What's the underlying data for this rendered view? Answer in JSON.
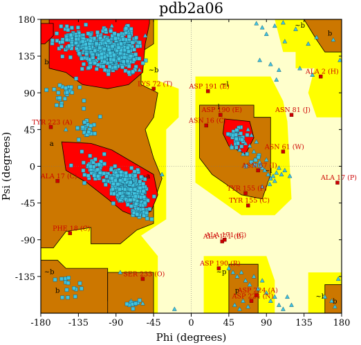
{
  "chart_data": {
    "type": "scatter",
    "title": "pdb2a06",
    "xlabel": "Phi (degrees)",
    "ylabel": "Psi (degrees)",
    "xlim": [
      -180,
      180
    ],
    "ylim": [
      -180,
      180
    ],
    "xticks": [
      -180,
      -135,
      -90,
      -45,
      0,
      45,
      90,
      135,
      180
    ],
    "yticks": [
      180,
      135,
      90,
      45,
      0,
      -45,
      -90,
      -135
    ],
    "xtick_labels": [
      "-180",
      "-135",
      "-90",
      "-45",
      "0",
      "45",
      "90",
      "135",
      "180"
    ],
    "ytick_labels": [
      "180",
      "135",
      "90",
      "45",
      "0",
      "-45",
      "-90",
      "-135"
    ],
    "zero_lines": true,
    "colors": {
      "core": "#ff0000",
      "allowed": "#cc7700",
      "generous": "#ffff00",
      "disallowed": "#ffffcc",
      "glycine": "#40c4e0",
      "non_glycine": "#40c4e0",
      "outlier": "#cc0000",
      "label_text": "#cc0000"
    },
    "region_labels": [
      {
        "text": "b",
        "phi": -173,
        "psi": 125
      },
      {
        "text": "a",
        "phi": -167,
        "psi": 25
      },
      {
        "text": "~b",
        "phi": -45,
        "psi": 115
      },
      {
        "text": "~a",
        "phi": -55,
        "psi": -15
      },
      {
        "text": "~l",
        "phi": 40,
        "psi": 98
      },
      {
        "text": "l",
        "phi": 33,
        "psi": 70
      },
      {
        "text": "~l",
        "phi": 92,
        "psi": -8
      },
      {
        "text": "~p",
        "phi": 36,
        "psi": -132
      },
      {
        "text": "p",
        "phi": 55,
        "psi": -155
      },
      {
        "text": "~b",
        "phi": 130,
        "psi": 170
      },
      {
        "text": "b",
        "phi": 166,
        "psi": 160
      },
      {
        "text": "~b",
        "phi": -170,
        "psi": -132
      },
      {
        "text": "b",
        "phi": -160,
        "psi": -155
      },
      {
        "text": "~b",
        "phi": 155,
        "psi": -162
      },
      {
        "text": "b",
        "phi": 172,
        "psi": -168
      }
    ],
    "outliers": [
      {
        "label": "LYS 72 (T)",
        "phi": -45,
        "psi": 95
      },
      {
        "label": "ASP 191 (E)",
        "phi": 20,
        "psi": 92
      },
      {
        "label": "ASP 190 (E)",
        "phi": 35,
        "psi": 63
      },
      {
        "label": "ASN 16 (C)",
        "phi": 18,
        "psi": 50
      },
      {
        "label": "ASN 81 (J)",
        "phi": 120,
        "psi": 63
      },
      {
        "label": "ALA 2 (H)",
        "phi": 155,
        "psi": 110
      },
      {
        "label": "TYR 223 (A)",
        "phi": -168,
        "psi": 48
      },
      {
        "label": "ASN 61 (W)",
        "phi": 110,
        "psi": 18
      },
      {
        "label": "ASN 67 (I)",
        "phi": 80,
        "psi": -5
      },
      {
        "label": "ALA 17 (C)",
        "phi": -160,
        "psi": -18
      },
      {
        "label": "ALA 17 (P)",
        "phi": 175,
        "psi": -20
      },
      {
        "label": "TYR 155 (P)",
        "phi": 65,
        "psi": -33
      },
      {
        "label": "TYR 155 (C)",
        "phi": 68,
        "psi": -48
      },
      {
        "label": "PHE 18 (C)",
        "phi": -145,
        "psi": -82
      },
      {
        "label": "ALA 171 (B)",
        "phi": 37,
        "psi": -92
      },
      {
        "label": "ALA 171 (C)",
        "phi": 40,
        "psi": -90
      },
      {
        "label": "ASP 190 (R)",
        "phi": 33,
        "psi": -125
      },
      {
        "label": "SER 233 (O)",
        "phi": -58,
        "psi": -138
      },
      {
        "label": "ASP 224 (A)",
        "phi": 78,
        "psi": -158
      },
      {
        "label": "ASP 224 (N)",
        "phi": 72,
        "psi": -165
      }
    ],
    "triangles": [
      {
        "phi": 78,
        "psi": 175
      },
      {
        "phi": 85,
        "psi": 170
      },
      {
        "phi": 90,
        "psi": 162
      },
      {
        "phi": 100,
        "psi": 172
      },
      {
        "phi": 110,
        "psi": 176
      },
      {
        "phi": 125,
        "psi": 168
      },
      {
        "phi": 140,
        "psi": 150
      },
      {
        "phi": 150,
        "psi": 158
      },
      {
        "phi": 170,
        "psi": 155
      },
      {
        "phi": 112,
        "psi": 153
      },
      {
        "phi": 82,
        "psi": 130
      },
      {
        "phi": 95,
        "psi": 125
      },
      {
        "phi": 105,
        "psi": 118
      },
      {
        "phi": 130,
        "psi": 120
      },
      {
        "phi": 145,
        "psi": 112
      },
      {
        "phi": 178,
        "psi": 130
      },
      {
        "phi": -78,
        "psi": 172
      },
      {
        "phi": -55,
        "psi": 160
      },
      {
        "phi": 102,
        "psi": 106
      },
      {
        "phi": -62,
        "psi": 118
      },
      {
        "phi": 55,
        "psi": 40
      },
      {
        "phi": 60,
        "psi": 32
      },
      {
        "phi": 65,
        "psi": 28
      },
      {
        "phi": 70,
        "psi": 25
      },
      {
        "phi": 72,
        "psi": 38
      },
      {
        "phi": 78,
        "psi": 30
      },
      {
        "phi": 75,
        "psi": 18
      },
      {
        "phi": 80,
        "psi": 12
      },
      {
        "phi": 82,
        "psi": 5
      },
      {
        "phi": 85,
        "psi": -2
      },
      {
        "phi": 88,
        "psi": -5
      },
      {
        "phi": 92,
        "psi": -10
      },
      {
        "phi": 95,
        "psi": -15
      },
      {
        "phi": 98,
        "psi": -12
      },
      {
        "phi": 102,
        "psi": -8
      },
      {
        "phi": 105,
        "psi": -2
      },
      {
        "phi": 100,
        "psi": -18
      },
      {
        "phi": 108,
        "psi": -10
      },
      {
        "phi": 112,
        "psi": -5
      },
      {
        "phi": 90,
        "psi": 8
      },
      {
        "phi": 68,
        "psi": 45
      },
      {
        "phi": 62,
        "psi": 15
      },
      {
        "phi": 58,
        "psi": 20
      },
      {
        "phi": 48,
        "psi": 25
      },
      {
        "phi": 85,
        "psi": -25
      },
      {
        "phi": 94,
        "psi": -22
      },
      {
        "phi": 118,
        "psi": -12
      },
      {
        "phi": 76,
        "psi": 8
      },
      {
        "phi": 45,
        "psi": -125
      },
      {
        "phi": 50,
        "psi": -130
      },
      {
        "phi": 55,
        "psi": -135
      },
      {
        "phi": 60,
        "psi": -130
      },
      {
        "phi": 65,
        "psi": -140
      },
      {
        "phi": 70,
        "psi": -145
      },
      {
        "phi": 75,
        "psi": -135
      },
      {
        "phi": 80,
        "psi": -150
      },
      {
        "phi": 85,
        "psi": -140
      },
      {
        "phi": 90,
        "psi": -155
      },
      {
        "phi": 95,
        "psi": -165
      },
      {
        "phi": 100,
        "psi": -160
      },
      {
        "phi": 105,
        "psi": -170
      },
      {
        "phi": 110,
        "psi": -175
      },
      {
        "phi": 62,
        "psi": -165
      },
      {
        "phi": 52,
        "psi": -170
      },
      {
        "phi": 58,
        "psi": -175
      },
      {
        "phi": 68,
        "psi": -172
      },
      {
        "phi": 115,
        "psi": -160
      },
      {
        "phi": 120,
        "psi": -170
      },
      {
        "phi": 160,
        "psi": -160
      },
      {
        "phi": 168,
        "psi": -165
      },
      {
        "phi": 172,
        "psi": -172
      },
      {
        "phi": 176,
        "psi": -138
      },
      {
        "phi": -58,
        "psi": -168
      },
      {
        "phi": -72,
        "psi": -165
      },
      {
        "phi": -20,
        "psi": -175
      },
      {
        "phi": -150,
        "psi": 45
      },
      {
        "phi": -95,
        "psi": 172
      },
      {
        "phi": -35,
        "psi": -10
      },
      {
        "phi": -85,
        "psi": -130
      }
    ]
  }
}
